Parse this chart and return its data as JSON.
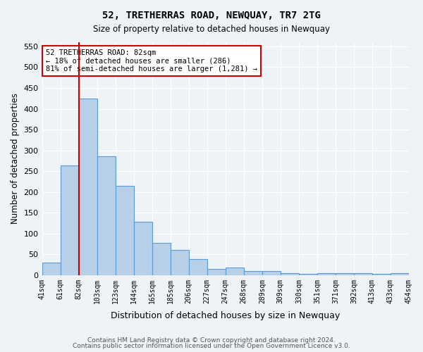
{
  "title": "52, TRETHERRAS ROAD, NEWQUAY, TR7 2TG",
  "subtitle": "Size of property relative to detached houses in Newquay",
  "xlabel": "Distribution of detached houses by size in Newquay",
  "ylabel": "Number of detached properties",
  "footnote1": "Contains HM Land Registry data © Crown copyright and database right 2024.",
  "footnote2": "Contains public sector information licensed under the Open Government Licence v3.0.",
  "bin_labels": [
    "41sqm",
    "61sqm",
    "82sqm",
    "103sqm",
    "123sqm",
    "144sqm",
    "165sqm",
    "185sqm",
    "206sqm",
    "227sqm",
    "247sqm",
    "268sqm",
    "289sqm",
    "309sqm",
    "330sqm",
    "351sqm",
    "371sqm",
    "392sqm",
    "413sqm",
    "433sqm",
    "454sqm"
  ],
  "bar_values": [
    30,
    263,
    425,
    286,
    215,
    128,
    77,
    60,
    39,
    15,
    19,
    9,
    10,
    5,
    3,
    4,
    5,
    4,
    3,
    5
  ],
  "bar_color": "#b8cfe8",
  "bar_edge_color": "#5b9bd5",
  "marker_bin_index": 2,
  "marker_color": "#cc0000",
  "ylim": [
    0,
    560
  ],
  "yticks": [
    0,
    50,
    100,
    150,
    200,
    250,
    300,
    350,
    400,
    450,
    500,
    550
  ],
  "annotation_title": "52 TRETHERRAS ROAD: 82sqm",
  "annotation_line1": "← 18% of detached houses are smaller (286)",
  "annotation_line2": "81% of semi-detached houses are larger (1,281) →",
  "annotation_box_color": "#ffffff",
  "annotation_box_edge": "#cc0000"
}
